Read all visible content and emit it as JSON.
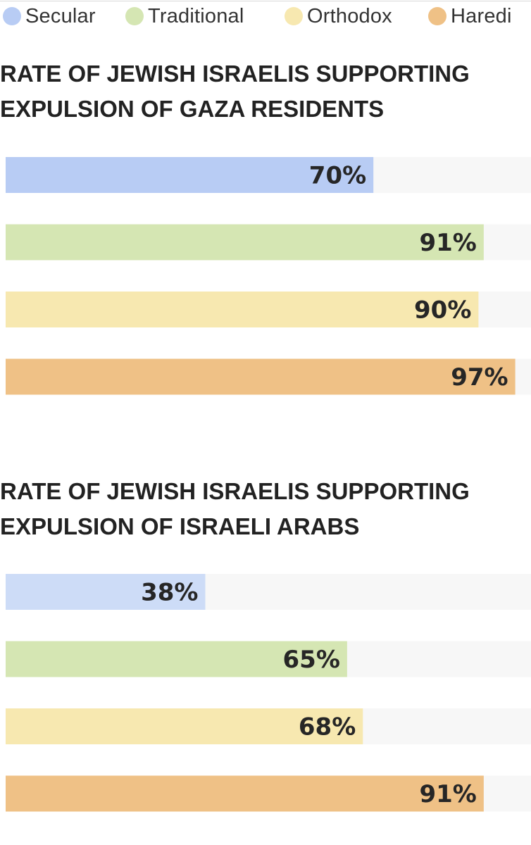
{
  "legend": [
    {
      "label": "Secular",
      "color": "#b8ccf4"
    },
    {
      "label": "Traditional",
      "color": "#d5e6b3"
    },
    {
      "label": "Orthodox",
      "color": "#f7e8b0"
    },
    {
      "label": "Haredi",
      "color": "#efc186"
    }
  ],
  "track_color": "#f7f7f7",
  "chart_data": [
    {
      "type": "bar",
      "title_lines": [
        "RATE OF JEWISH ISRAELIS SUPPORTING",
        "EXPULSION OF GAZA RESIDENTS"
      ],
      "categories": [
        "Secular",
        "Traditional",
        "Orthodox",
        "Haredi"
      ],
      "values": [
        70,
        91,
        90,
        97
      ],
      "labels": [
        "70%",
        "91%",
        "90%",
        "97%"
      ],
      "colors": [
        "#b8ccf4",
        "#d5e6b3",
        "#f7e8b0",
        "#efc186"
      ],
      "xlim": [
        0,
        100
      ],
      "orientation": "horizontal"
    },
    {
      "type": "bar",
      "title_lines": [
        "RATE OF JEWISH ISRAELIS SUPPORTING",
        "EXPULSION OF ISRAELI ARABS"
      ],
      "categories": [
        "Secular",
        "Traditional",
        "Orthodox",
        "Haredi"
      ],
      "values": [
        38,
        65,
        68,
        91
      ],
      "labels": [
        "38%",
        "65%",
        "68%",
        "91%"
      ],
      "colors": [
        "#cddcf7",
        "#d5e6b3",
        "#f7e8b0",
        "#efc186"
      ],
      "xlim": [
        0,
        100
      ],
      "orientation": "horizontal"
    }
  ]
}
